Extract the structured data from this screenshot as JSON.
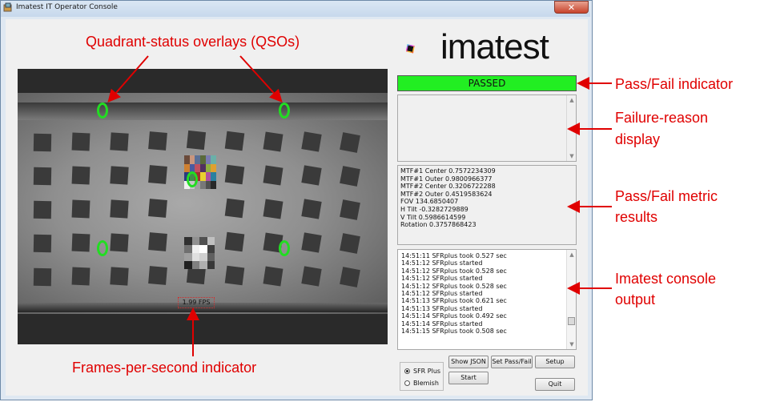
{
  "window": {
    "title": "Imatest IT Operator Console",
    "close_glyph": "✕"
  },
  "camera": {
    "fps_label": "1.99 FPS"
  },
  "logo": {
    "text": "imatest"
  },
  "status": {
    "label": "PASSED",
    "color": "#22ee22"
  },
  "metrics": [
    "MTF#1 Center 0.7572234309",
    "MTF#1 Outer 0.9800966377",
    "MTF#2 Center 0.3206722288",
    "MTF#2 Outer 0.4519583624",
    "FOV 134.6850407",
    "H Tilt -0.3282729889",
    "V Tilt 0.5986614599",
    "Rotation 0.3757868423"
  ],
  "console": [
    "14:51:11 SFRplus took 0.527 sec",
    "14:51:12 SFRplus started",
    "14:51:12 SFRplus took 0.528 sec",
    "14:51:12 SFRplus started",
    "14:51:12 SFRplus took 0.528 sec",
    "14:51:12 SFRplus started",
    "14:51:13 SFRplus took 0.621 sec",
    "14:51:13 SFRplus started",
    "14:51:14 SFRplus took 0.492 sec",
    "14:51:14 SFRplus started",
    "14:51:15 SFRplus took 0.508 sec"
  ],
  "buttons": {
    "show_json": "Show JSON",
    "set_pass_fail": "Set Pass/Fail",
    "setup": "Setup",
    "start": "Start",
    "quit": "Quit"
  },
  "modes": [
    {
      "label": "SFR Plus",
      "selected": true
    },
    {
      "label": "Blemish",
      "selected": false
    }
  ],
  "annotations": {
    "qso": "Quadrant-status overlays (QSOs)",
    "pass_fail": "Pass/Fail indicator",
    "failure_reason_1": "Failure-reason",
    "failure_reason_2": "display",
    "metric_results_1": "Pass/Fail metric",
    "metric_results_2": "results",
    "console_1": "Imatest console",
    "console_2": "output",
    "fps": "Frames-per-second indicator"
  },
  "colors": {
    "annotation": "#e00000",
    "qso": "#22dd22"
  }
}
